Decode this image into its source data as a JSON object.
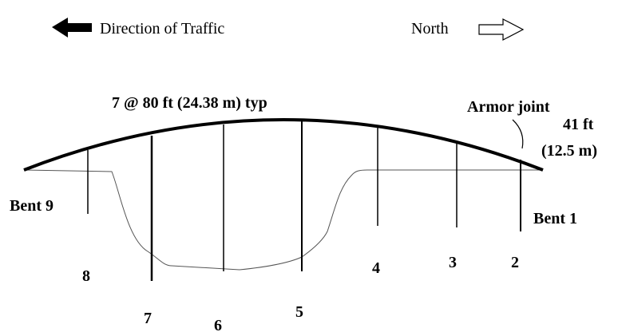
{
  "header": {
    "direction": "Direction of Traffic",
    "north": "North"
  },
  "span_label": "7 @ 80 ft (24.38 m) typ",
  "armor_joint": "Armor joint",
  "height": {
    "feet": "41 ft",
    "meters": "(12.5 m)"
  },
  "ends": {
    "left": "Bent 9",
    "right": "Bent 1"
  },
  "bents": [
    "8",
    "7",
    "6",
    "5",
    "4",
    "3",
    "2"
  ]
}
